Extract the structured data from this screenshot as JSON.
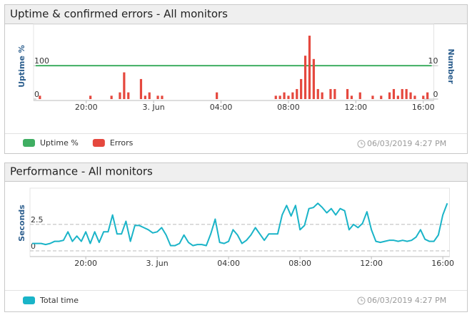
{
  "chart_data": [
    {
      "type": "bar",
      "title": "Uptime & confirmed errors - All monitors",
      "ylabel": "Uptime %",
      "y2label": "Number",
      "categories": [
        null,
        null,
        null,
        null,
        null,
        null,
        null,
        null,
        null,
        null,
        null,
        null,
        "20:00",
        null,
        null,
        null,
        null,
        null,
        null,
        null,
        null,
        null,
        null,
        null,
        null,
        null,
        null,
        null,
        "3. Jun",
        null,
        null,
        null,
        null,
        null,
        null,
        null,
        null,
        null,
        null,
        null,
        null,
        null,
        null,
        null,
        "04:00",
        null,
        null,
        null,
        null,
        null,
        null,
        null,
        null,
        null,
        null,
        null,
        null,
        null,
        null,
        null,
        "08:00",
        null,
        null,
        null,
        null,
        null,
        null,
        null,
        null,
        null,
        null,
        null,
        null,
        null,
        null,
        null,
        "12:00",
        null,
        null,
        null,
        null,
        null,
        null,
        null,
        null,
        null,
        null,
        null,
        null,
        null,
        null,
        null,
        "16:00",
        null,
        null
      ],
      "series": [
        {
          "name": "Uptime %",
          "type": "line",
          "color": "#3fae62",
          "axis": "y",
          "values": [
            100,
            100,
            100,
            100,
            100,
            100,
            100,
            100,
            100,
            100,
            100,
            100,
            100,
            100,
            100,
            100,
            100,
            100,
            100,
            100,
            100,
            100,
            100,
            100,
            100,
            100,
            100,
            100,
            100,
            100,
            100,
            100,
            100,
            100,
            100,
            100,
            100,
            100,
            100,
            100,
            100,
            100,
            100,
            100,
            100,
            100,
            100,
            100,
            100,
            100,
            100,
            100,
            100,
            100,
            100,
            100,
            100,
            100,
            100,
            100,
            100,
            100,
            100,
            100,
            100,
            100,
            100,
            100,
            100,
            100,
            100,
            100,
            100,
            100,
            100,
            100,
            100,
            100,
            100,
            100,
            100,
            100,
            100,
            100,
            100,
            100,
            100,
            100,
            100,
            100,
            100,
            100,
            100,
            100,
            100
          ]
        },
        {
          "name": "Errors",
          "type": "bar",
          "color": "#e5483e",
          "axis": "y2",
          "values": [
            0,
            1,
            0,
            0,
            0,
            0,
            0,
            0,
            0,
            0,
            0,
            0,
            0,
            1,
            0,
            0,
            0,
            0,
            1,
            0,
            2,
            8,
            2,
            0,
            0,
            6,
            1,
            2,
            0,
            1,
            1,
            0,
            0,
            0,
            0,
            0,
            0,
            0,
            0,
            0,
            0,
            0,
            0,
            2,
            0,
            0,
            0,
            0,
            0,
            0,
            0,
            0,
            0,
            0,
            0,
            0,
            0,
            1,
            1,
            2,
            1,
            2,
            3,
            6,
            13,
            19,
            12,
            3,
            2,
            0,
            3,
            3,
            0,
            0,
            3,
            1,
            0,
            2,
            0,
            0,
            1,
            0,
            1,
            0,
            2,
            3,
            1,
            3,
            3,
            2,
            1,
            0,
            1,
            2,
            0
          ]
        }
      ],
      "ylim": [
        0,
        220
      ],
      "yticks": [
        0,
        100
      ],
      "y2lim": [
        0,
        22
      ],
      "y2ticks": [
        0,
        10
      ],
      "grid": false,
      "timestamp": "06/03/2019 4:27 PM"
    },
    {
      "type": "line",
      "title": "Performance - All monitors",
      "ylabel": "Seconds",
      "categories": [
        null,
        null,
        null,
        null,
        null,
        null,
        null,
        null,
        null,
        null,
        null,
        null,
        "20:00",
        null,
        null,
        null,
        null,
        null,
        null,
        null,
        null,
        null,
        null,
        null,
        null,
        null,
        null,
        null,
        "3. Jun",
        null,
        null,
        null,
        null,
        null,
        null,
        null,
        null,
        null,
        null,
        null,
        null,
        null,
        null,
        null,
        "04:00",
        null,
        null,
        null,
        null,
        null,
        null,
        null,
        null,
        null,
        null,
        null,
        null,
        null,
        null,
        null,
        "08:00",
        null,
        null,
        null,
        null,
        null,
        null,
        null,
        null,
        null,
        null,
        null,
        null,
        null,
        null,
        null,
        "12:00",
        null,
        null,
        null,
        null,
        null,
        null,
        null,
        null,
        null,
        null,
        null,
        null,
        null,
        null,
        null,
        "16:00",
        null
      ],
      "series": [
        {
          "name": "Total time",
          "color": "#1ab4c8",
          "values": [
            0.7,
            0.7,
            0.7,
            0.6,
            0.7,
            0.9,
            0.9,
            1.0,
            1.8,
            0.9,
            1.4,
            0.9,
            1.8,
            0.7,
            1.8,
            0.8,
            1.8,
            1.8,
            3.4,
            1.6,
            1.6,
            2.8,
            0.9,
            2.4,
            2.4,
            2.2,
            2.0,
            1.7,
            1.8,
            2.2,
            1.5,
            0.5,
            0.5,
            0.7,
            1.5,
            0.8,
            0.5,
            0.6,
            0.6,
            0.5,
            1.6,
            3.0,
            0.8,
            0.7,
            0.9,
            2.0,
            1.5,
            0.7,
            1.0,
            1.5,
            2.2,
            1.6,
            1.0,
            1.6,
            1.6,
            1.6,
            3.4,
            4.3,
            3.3,
            4.3,
            2.0,
            2.4,
            4.0,
            4.1,
            4.5,
            4.1,
            3.6,
            4.0,
            3.4,
            4.0,
            3.8,
            2.0,
            2.5,
            2.2,
            2.6,
            3.7,
            2.0,
            0.9,
            0.8,
            0.9,
            1.0,
            1.0,
            0.9,
            1.0,
            0.9,
            1.0,
            1.3,
            2.0,
            1.1,
            0.9,
            0.9,
            1.5,
            3.4,
            4.5
          ]
        }
      ],
      "ylim": [
        0,
        5.8
      ],
      "yticks": [
        0,
        2.5
      ],
      "grid": true,
      "timestamp": "06/03/2019 4:27 PM"
    }
  ]
}
